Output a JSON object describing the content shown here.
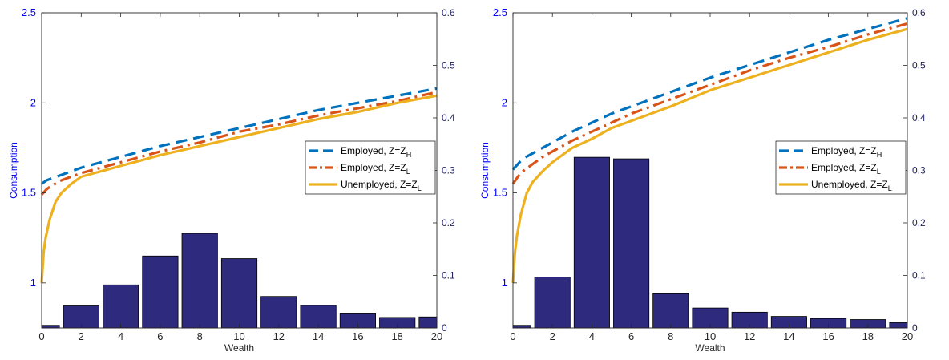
{
  "colors": {
    "employed_high": "#0072BD",
    "employed_low": "#D95319",
    "unemployed_low": "#EDB120",
    "bars": "#2E2A7E",
    "left_axis_text": "#0000FF",
    "right_axis_text": "#1F1F5F"
  },
  "chart_data": [
    {
      "type": "line",
      "secondary_type": "bar",
      "title": "",
      "xlabel": "Wealth",
      "ylabel": "Consumption",
      "xlim": [
        0,
        20
      ],
      "ylim": [
        0.75,
        2.5
      ],
      "y2lim": [
        0,
        0.6
      ],
      "xticks": [
        "0",
        "2",
        "4",
        "6",
        "8",
        "10",
        "12",
        "14",
        "16",
        "18",
        "20"
      ],
      "yticks": [
        "1",
        "1.5",
        "2",
        "2.5"
      ],
      "y2ticks": [
        "0",
        "0.1",
        "0.2",
        "0.3",
        "0.4",
        "0.5",
        "0.6"
      ],
      "grid": false,
      "legend_position": "right",
      "legend": [
        {
          "text": "Employed, Z=Z",
          "sub": "H"
        },
        {
          "text": "Employed, Z=Z",
          "sub": "L"
        },
        {
          "text": "Unemployed, Z=Z",
          "sub": "L"
        }
      ],
      "series": [
        {
          "style": "dash",
          "color": "#0072BD",
          "x": [
            0,
            0.25,
            0.5,
            1,
            1.5,
            2,
            3,
            4,
            5,
            6,
            8,
            10,
            12,
            14,
            16,
            18,
            20
          ],
          "y": [
            1.55,
            1.57,
            1.58,
            1.6,
            1.62,
            1.64,
            1.67,
            1.7,
            1.73,
            1.76,
            1.81,
            1.86,
            1.91,
            1.96,
            2.0,
            2.04,
            2.08
          ]
        },
        {
          "style": "dashdot",
          "color": "#D95319",
          "x": [
            0,
            0.25,
            0.5,
            1,
            1.5,
            2,
            3,
            4,
            5,
            6,
            8,
            10,
            12,
            14,
            16,
            18,
            20
          ],
          "y": [
            1.49,
            1.52,
            1.54,
            1.57,
            1.59,
            1.61,
            1.64,
            1.67,
            1.7,
            1.73,
            1.78,
            1.84,
            1.88,
            1.93,
            1.97,
            2.01,
            2.06
          ]
        },
        {
          "style": "solid",
          "color": "#EDB120",
          "x": [
            0,
            0.1,
            0.2,
            0.4,
            0.7,
            1,
            1.5,
            2,
            3,
            4,
            5,
            6,
            8,
            10,
            12,
            14,
            16,
            18,
            20
          ],
          "y": [
            1.0,
            1.17,
            1.25,
            1.35,
            1.45,
            1.5,
            1.55,
            1.59,
            1.62,
            1.65,
            1.68,
            1.71,
            1.76,
            1.81,
            1.86,
            1.91,
            1.95,
            2.0,
            2.04
          ]
        }
      ],
      "bars": {
        "x": [
          0,
          2,
          4,
          6,
          8,
          10,
          12,
          14,
          16,
          18,
          20
        ],
        "values": [
          0.005,
          0.042,
          0.082,
          0.137,
          0.18,
          0.132,
          0.06,
          0.043,
          0.027,
          0.02,
          0.021
        ],
        "width": 1.8,
        "axis": "right"
      }
    },
    {
      "type": "line",
      "secondary_type": "bar",
      "title": "",
      "xlabel": "Wealth",
      "ylabel": "Consumption",
      "xlim": [
        0,
        20
      ],
      "ylim": [
        0.75,
        2.5
      ],
      "y2lim": [
        0,
        0.6
      ],
      "xticks": [
        "0",
        "2",
        "4",
        "6",
        "8",
        "10",
        "12",
        "14",
        "16",
        "18",
        "20"
      ],
      "yticks": [
        "1",
        "1.5",
        "2",
        "2.5"
      ],
      "y2ticks": [
        "0",
        "0.1",
        "0.2",
        "0.3",
        "0.4",
        "0.5",
        "0.6"
      ],
      "grid": false,
      "legend_position": "right",
      "legend": [
        {
          "text": "Employed, Z=Z",
          "sub": "H"
        },
        {
          "text": "Employed, Z=Z",
          "sub": "L"
        },
        {
          "text": "Unemployed, Z=Z",
          "sub": "L"
        }
      ],
      "series": [
        {
          "style": "dash",
          "color": "#0072BD",
          "x": [
            0,
            0.25,
            0.5,
            1,
            1.5,
            2,
            3,
            4,
            5,
            6,
            8,
            10,
            12,
            14,
            16,
            18,
            20
          ],
          "y": [
            1.63,
            1.66,
            1.69,
            1.72,
            1.75,
            1.78,
            1.84,
            1.89,
            1.94,
            1.98,
            2.06,
            2.14,
            2.21,
            2.28,
            2.35,
            2.41,
            2.47
          ]
        },
        {
          "style": "dashdot",
          "color": "#D95319",
          "x": [
            0,
            0.25,
            0.5,
            1,
            1.5,
            2,
            3,
            4,
            5,
            6,
            8,
            10,
            12,
            14,
            16,
            18,
            20
          ],
          "y": [
            1.55,
            1.59,
            1.62,
            1.66,
            1.7,
            1.73,
            1.79,
            1.84,
            1.89,
            1.94,
            2.02,
            2.1,
            2.18,
            2.25,
            2.31,
            2.38,
            2.44
          ]
        },
        {
          "style": "solid",
          "color": "#EDB120",
          "x": [
            0,
            0.1,
            0.2,
            0.4,
            0.7,
            1,
            1.5,
            2,
            3,
            4,
            5,
            6,
            8,
            10,
            12,
            14,
            16,
            18,
            20
          ],
          "y": [
            1.0,
            1.17,
            1.26,
            1.38,
            1.5,
            1.56,
            1.62,
            1.67,
            1.75,
            1.8,
            1.86,
            1.9,
            1.98,
            2.07,
            2.14,
            2.21,
            2.28,
            2.35,
            2.41
          ]
        }
      ],
      "bars": {
        "x": [
          0,
          2,
          4,
          6,
          8,
          10,
          12,
          14,
          16,
          18,
          20
        ],
        "values": [
          0.005,
          0.097,
          0.325,
          0.322,
          0.065,
          0.038,
          0.03,
          0.022,
          0.018,
          0.016,
          0.01
        ],
        "width": 1.8,
        "axis": "right"
      }
    }
  ]
}
